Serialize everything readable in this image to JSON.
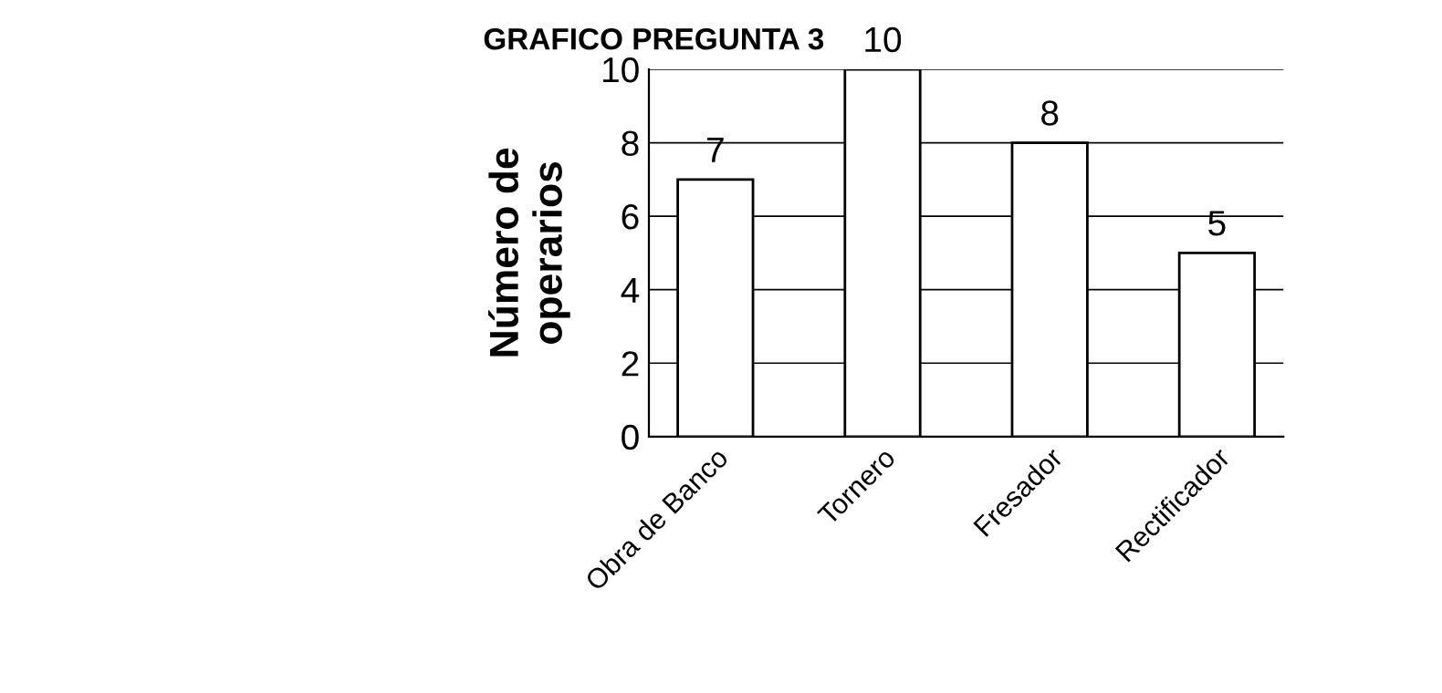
{
  "chart_data": {
    "type": "bar",
    "title": "GRAFICO PREGUNTA 3",
    "ylabel": "Número de\noperarios",
    "categories": [
      "Obra de Banco",
      "Tornero",
      "Fresador",
      "Rectificador"
    ],
    "values": [
      7,
      10,
      8,
      5
    ],
    "color": "#ffffff",
    "ylim": [
      0,
      10
    ],
    "yticks": [
      0,
      2,
      4,
      6,
      8,
      10
    ],
    "grid": "y",
    "data_labels": true,
    "legend": false
  }
}
